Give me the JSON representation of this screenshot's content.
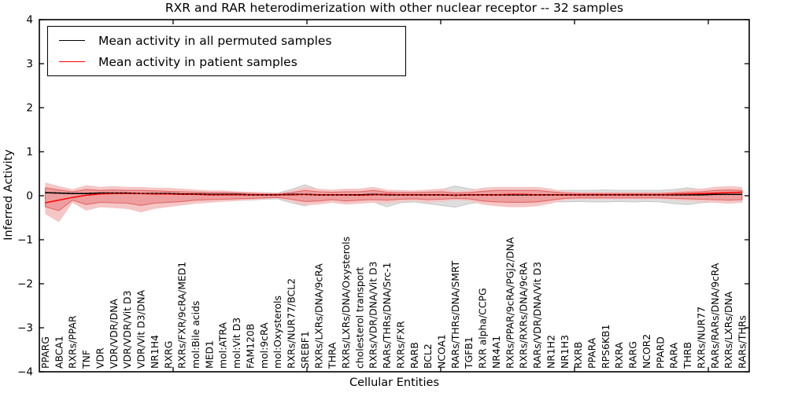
{
  "chart_data": {
    "type": "line",
    "title": "RXR and RAR heterodimerization with other nuclear receptor -- 32 samples",
    "xlabel": "Cellular Entities",
    "ylabel": "Inferred Activity",
    "ylim": [
      -4,
      4
    ],
    "yticks": [
      4,
      3,
      2,
      1,
      0,
      -1,
      -2,
      -3,
      -4
    ],
    "grid": false,
    "legend_position": "upper left",
    "colors": {
      "permuted_line": "#000000",
      "patient_line": "#ff0000",
      "permuted_band_fill": "#dedede",
      "permuted_band_edge": "#c9c9c9",
      "patient_band_outer_fill": "#f5c6c6",
      "patient_band_inner_fill": "#ee9e9e",
      "patient_band_inner_edge": "#e26868"
    },
    "categories": [
      "PPARG",
      "ABCA1",
      "RXRs/PPAR",
      "TNF",
      "VDR",
      "VDR/VDR/DNA",
      "VDR/VDR/Vit D3",
      "VDR/Vit D3/DNA",
      "NR1H4",
      "RXRG",
      "RXRs/FXR/9cRA/MED1",
      "mol:Bile acids",
      "MED1",
      "mol:ATRA",
      "mol:Vit D3",
      "FAM120B",
      "mol:9cRA",
      "mol:Oxysterols",
      "RXRs/NUR77/BCL2",
      "SREBF1",
      "RXRs/LXRs/DNA/9cRA",
      "THRA",
      "RXRs/LXRs/DNA/Oxysterols",
      "cholesterol transport",
      "RXRs/VDR/DNA/Vit D3",
      "RARs/THRs/DNA/Src-1",
      "RXRs/FXR",
      "RARB",
      "BCL2",
      "NCOA1",
      "RARs/THRs/DNA/SMRT",
      "TGFB1",
      "RXR alpha/CCPG",
      "NR4A1",
      "RXRs/PPAR/9cRA/PGJ2/DNA",
      "RXRs/RXRs/DNA/9cRA",
      "RARs/VDR/DNA/Vit D3",
      "NR1H2",
      "NR1H3",
      "RXRB",
      "PPARA",
      "RPS6KB1",
      "RXRA",
      "RARG",
      "NCOR2",
      "PPARD",
      "RARA",
      "THRB",
      "RXRs/NUR77",
      "RARs/RARs/DNA/9cRA",
      "RXRs/LXRs/DNA",
      "RARs/THRs"
    ],
    "series": [
      {
        "name": "Mean activity in all permuted samples",
        "color": "#000000",
        "style": "dashed",
        "values": [
          0.07,
          0.06,
          0.05,
          0.05,
          0.06,
          0.06,
          0.06,
          0.05,
          0.05,
          0.05,
          0.04,
          0.04,
          0.03,
          0.03,
          0.03,
          0.02,
          0.02,
          0.02,
          0.03,
          0.03,
          0.02,
          0.02,
          0.02,
          0.02,
          0.03,
          0.02,
          0.02,
          0.02,
          0.02,
          0.02,
          0.01,
          0.02,
          0.02,
          0.02,
          0.02,
          0.02,
          0.02,
          0.02,
          0.02,
          0.02,
          0.02,
          0.02,
          0.02,
          0.02,
          0.02,
          0.02,
          0.02,
          0.02,
          0.02,
          0.03,
          0.03,
          0.03
        ]
      },
      {
        "name": "Mean activity in patient samples",
        "color": "#ff0000",
        "style": "solid",
        "values": [
          -0.16,
          -0.1,
          -0.04,
          0.01,
          0.04,
          0.05,
          0.05,
          0.05,
          0.04,
          0.04,
          0.03,
          0.03,
          0.02,
          0.02,
          0.02,
          0.02,
          0.02,
          0.02,
          0.02,
          0.03,
          0.02,
          0.02,
          0.02,
          0.01,
          0.02,
          0.03,
          0.02,
          0.02,
          0.02,
          0.02,
          0.01,
          0.02,
          0.02,
          0.02,
          0.03,
          0.03,
          0.02,
          0.02,
          0.02,
          0.02,
          0.02,
          0.02,
          0.02,
          0.02,
          0.02,
          0.02,
          0.03,
          0.04,
          0.05,
          0.06,
          0.07,
          0.08
        ]
      }
    ],
    "bands": [
      {
        "name": "permuted-samples-std-band",
        "fill": "#dedede",
        "edge": "#c9c9c9",
        "upper": [
          0.15,
          0.12,
          0.1,
          0.15,
          0.14,
          0.14,
          0.14,
          0.12,
          0.12,
          0.12,
          0.12,
          0.1,
          0.1,
          0.1,
          0.08,
          0.08,
          0.07,
          0.06,
          0.14,
          0.25,
          0.14,
          0.12,
          0.12,
          0.12,
          0.14,
          0.12,
          0.12,
          0.1,
          0.12,
          0.14,
          0.22,
          0.16,
          0.12,
          0.12,
          0.12,
          0.12,
          0.12,
          0.12,
          0.12,
          0.12,
          0.12,
          0.13,
          0.12,
          0.12,
          0.12,
          0.12,
          0.14,
          0.18,
          0.14,
          0.12,
          0.14,
          0.12
        ],
        "lower": [
          -0.25,
          -0.3,
          -0.14,
          -0.2,
          -0.18,
          -0.2,
          -0.3,
          -0.25,
          -0.22,
          -0.2,
          -0.18,
          -0.14,
          -0.12,
          -0.12,
          -0.1,
          -0.1,
          -0.08,
          -0.07,
          -0.16,
          -0.23,
          -0.16,
          -0.14,
          -0.16,
          -0.14,
          -0.14,
          -0.25,
          -0.16,
          -0.14,
          -0.18,
          -0.22,
          -0.26,
          -0.18,
          -0.14,
          -0.14,
          -0.16,
          -0.14,
          -0.14,
          -0.14,
          -0.14,
          -0.13,
          -0.14,
          -0.14,
          -0.13,
          -0.14,
          -0.13,
          -0.14,
          -0.18,
          -0.2,
          -0.16,
          -0.14,
          -0.16,
          -0.14
        ]
      },
      {
        "name": "patient-samples-std-outer-band",
        "fill": "#f5c6c6",
        "edge": "none",
        "upper": [
          0.3,
          0.22,
          0.15,
          0.24,
          0.2,
          0.22,
          0.2,
          0.2,
          0.18,
          0.18,
          0.16,
          0.14,
          0.12,
          0.12,
          0.1,
          0.09,
          0.07,
          0.06,
          0.12,
          0.2,
          0.16,
          0.14,
          0.16,
          0.16,
          0.2,
          0.14,
          0.12,
          0.12,
          0.14,
          0.16,
          0.1,
          0.12,
          0.18,
          0.2,
          0.2,
          0.2,
          0.2,
          0.16,
          0.1,
          0.08,
          0.08,
          0.08,
          0.08,
          0.08,
          0.08,
          0.08,
          0.1,
          0.14,
          0.16,
          0.2,
          0.22,
          0.2
        ],
        "lower": [
          -0.42,
          -0.6,
          -0.16,
          -0.34,
          -0.26,
          -0.28,
          -0.3,
          -0.38,
          -0.3,
          -0.26,
          -0.22,
          -0.18,
          -0.16,
          -0.14,
          -0.12,
          -0.1,
          -0.08,
          -0.06,
          -0.14,
          -0.22,
          -0.2,
          -0.16,
          -0.2,
          -0.18,
          -0.16,
          -0.18,
          -0.14,
          -0.12,
          -0.16,
          -0.14,
          -0.1,
          -0.12,
          -0.2,
          -0.24,
          -0.26,
          -0.26,
          -0.24,
          -0.18,
          -0.1,
          -0.08,
          -0.08,
          -0.08,
          -0.08,
          -0.08,
          -0.08,
          -0.08,
          -0.1,
          -0.12,
          -0.14,
          -0.16,
          -0.18,
          -0.16
        ]
      },
      {
        "name": "patient-samples-std-inner-band",
        "fill": "#ee9e9e",
        "edge": "#e26868",
        "upper": [
          0.18,
          0.13,
          0.09,
          0.14,
          0.12,
          0.13,
          0.12,
          0.12,
          0.11,
          0.1,
          0.09,
          0.08,
          0.07,
          0.07,
          0.06,
          0.05,
          0.04,
          0.04,
          0.07,
          0.12,
          0.09,
          0.08,
          0.09,
          0.09,
          0.12,
          0.08,
          0.07,
          0.07,
          0.08,
          0.09,
          0.06,
          0.07,
          0.1,
          0.12,
          0.12,
          0.12,
          0.12,
          0.09,
          0.06,
          0.05,
          0.05,
          0.05,
          0.05,
          0.05,
          0.05,
          0.05,
          0.06,
          0.08,
          0.09,
          0.12,
          0.13,
          0.12
        ],
        "lower": [
          -0.25,
          -0.34,
          -0.1,
          -0.2,
          -0.15,
          -0.16,
          -0.17,
          -0.22,
          -0.17,
          -0.15,
          -0.13,
          -0.1,
          -0.09,
          -0.08,
          -0.07,
          -0.06,
          -0.05,
          -0.04,
          -0.08,
          -0.13,
          -0.12,
          -0.09,
          -0.12,
          -0.1,
          -0.09,
          -0.1,
          -0.08,
          -0.07,
          -0.09,
          -0.08,
          -0.06,
          -0.07,
          -0.12,
          -0.14,
          -0.15,
          -0.15,
          -0.14,
          -0.1,
          -0.06,
          -0.05,
          -0.05,
          -0.05,
          -0.05,
          -0.05,
          -0.05,
          -0.05,
          -0.06,
          -0.07,
          -0.08,
          -0.09,
          -0.1,
          -0.09
        ]
      }
    ],
    "legend": {
      "entries": [
        {
          "label": "Mean activity in all permuted samples",
          "color": "#000000"
        },
        {
          "label": "Mean activity in patient samples",
          "color": "#ff0000"
        }
      ]
    }
  }
}
